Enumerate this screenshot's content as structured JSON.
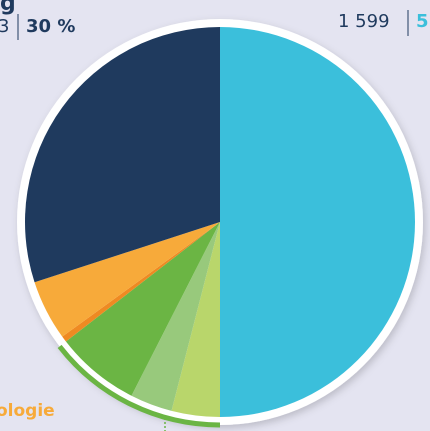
{
  "chart_data": {
    "type": "pie",
    "values": [
      50,
      4,
      3.5,
      7,
      0.5,
      5,
      30
    ],
    "colors": [
      "#3bbfdb",
      "#b9d66b",
      "#98c97c",
      "#6bb544",
      "#ef8a22",
      "#f7aa3a",
      "#1f3a5e"
    ],
    "value_labels": [
      null,
      null,
      null,
      null,
      null,
      null,
      "30 %"
    ],
    "annotations": [
      {
        "text": "g"
      },
      {
        "text": "3"
      },
      {
        "text": "1 599"
      },
      {
        "text": "5"
      },
      {
        "text": "ologie"
      }
    ]
  }
}
